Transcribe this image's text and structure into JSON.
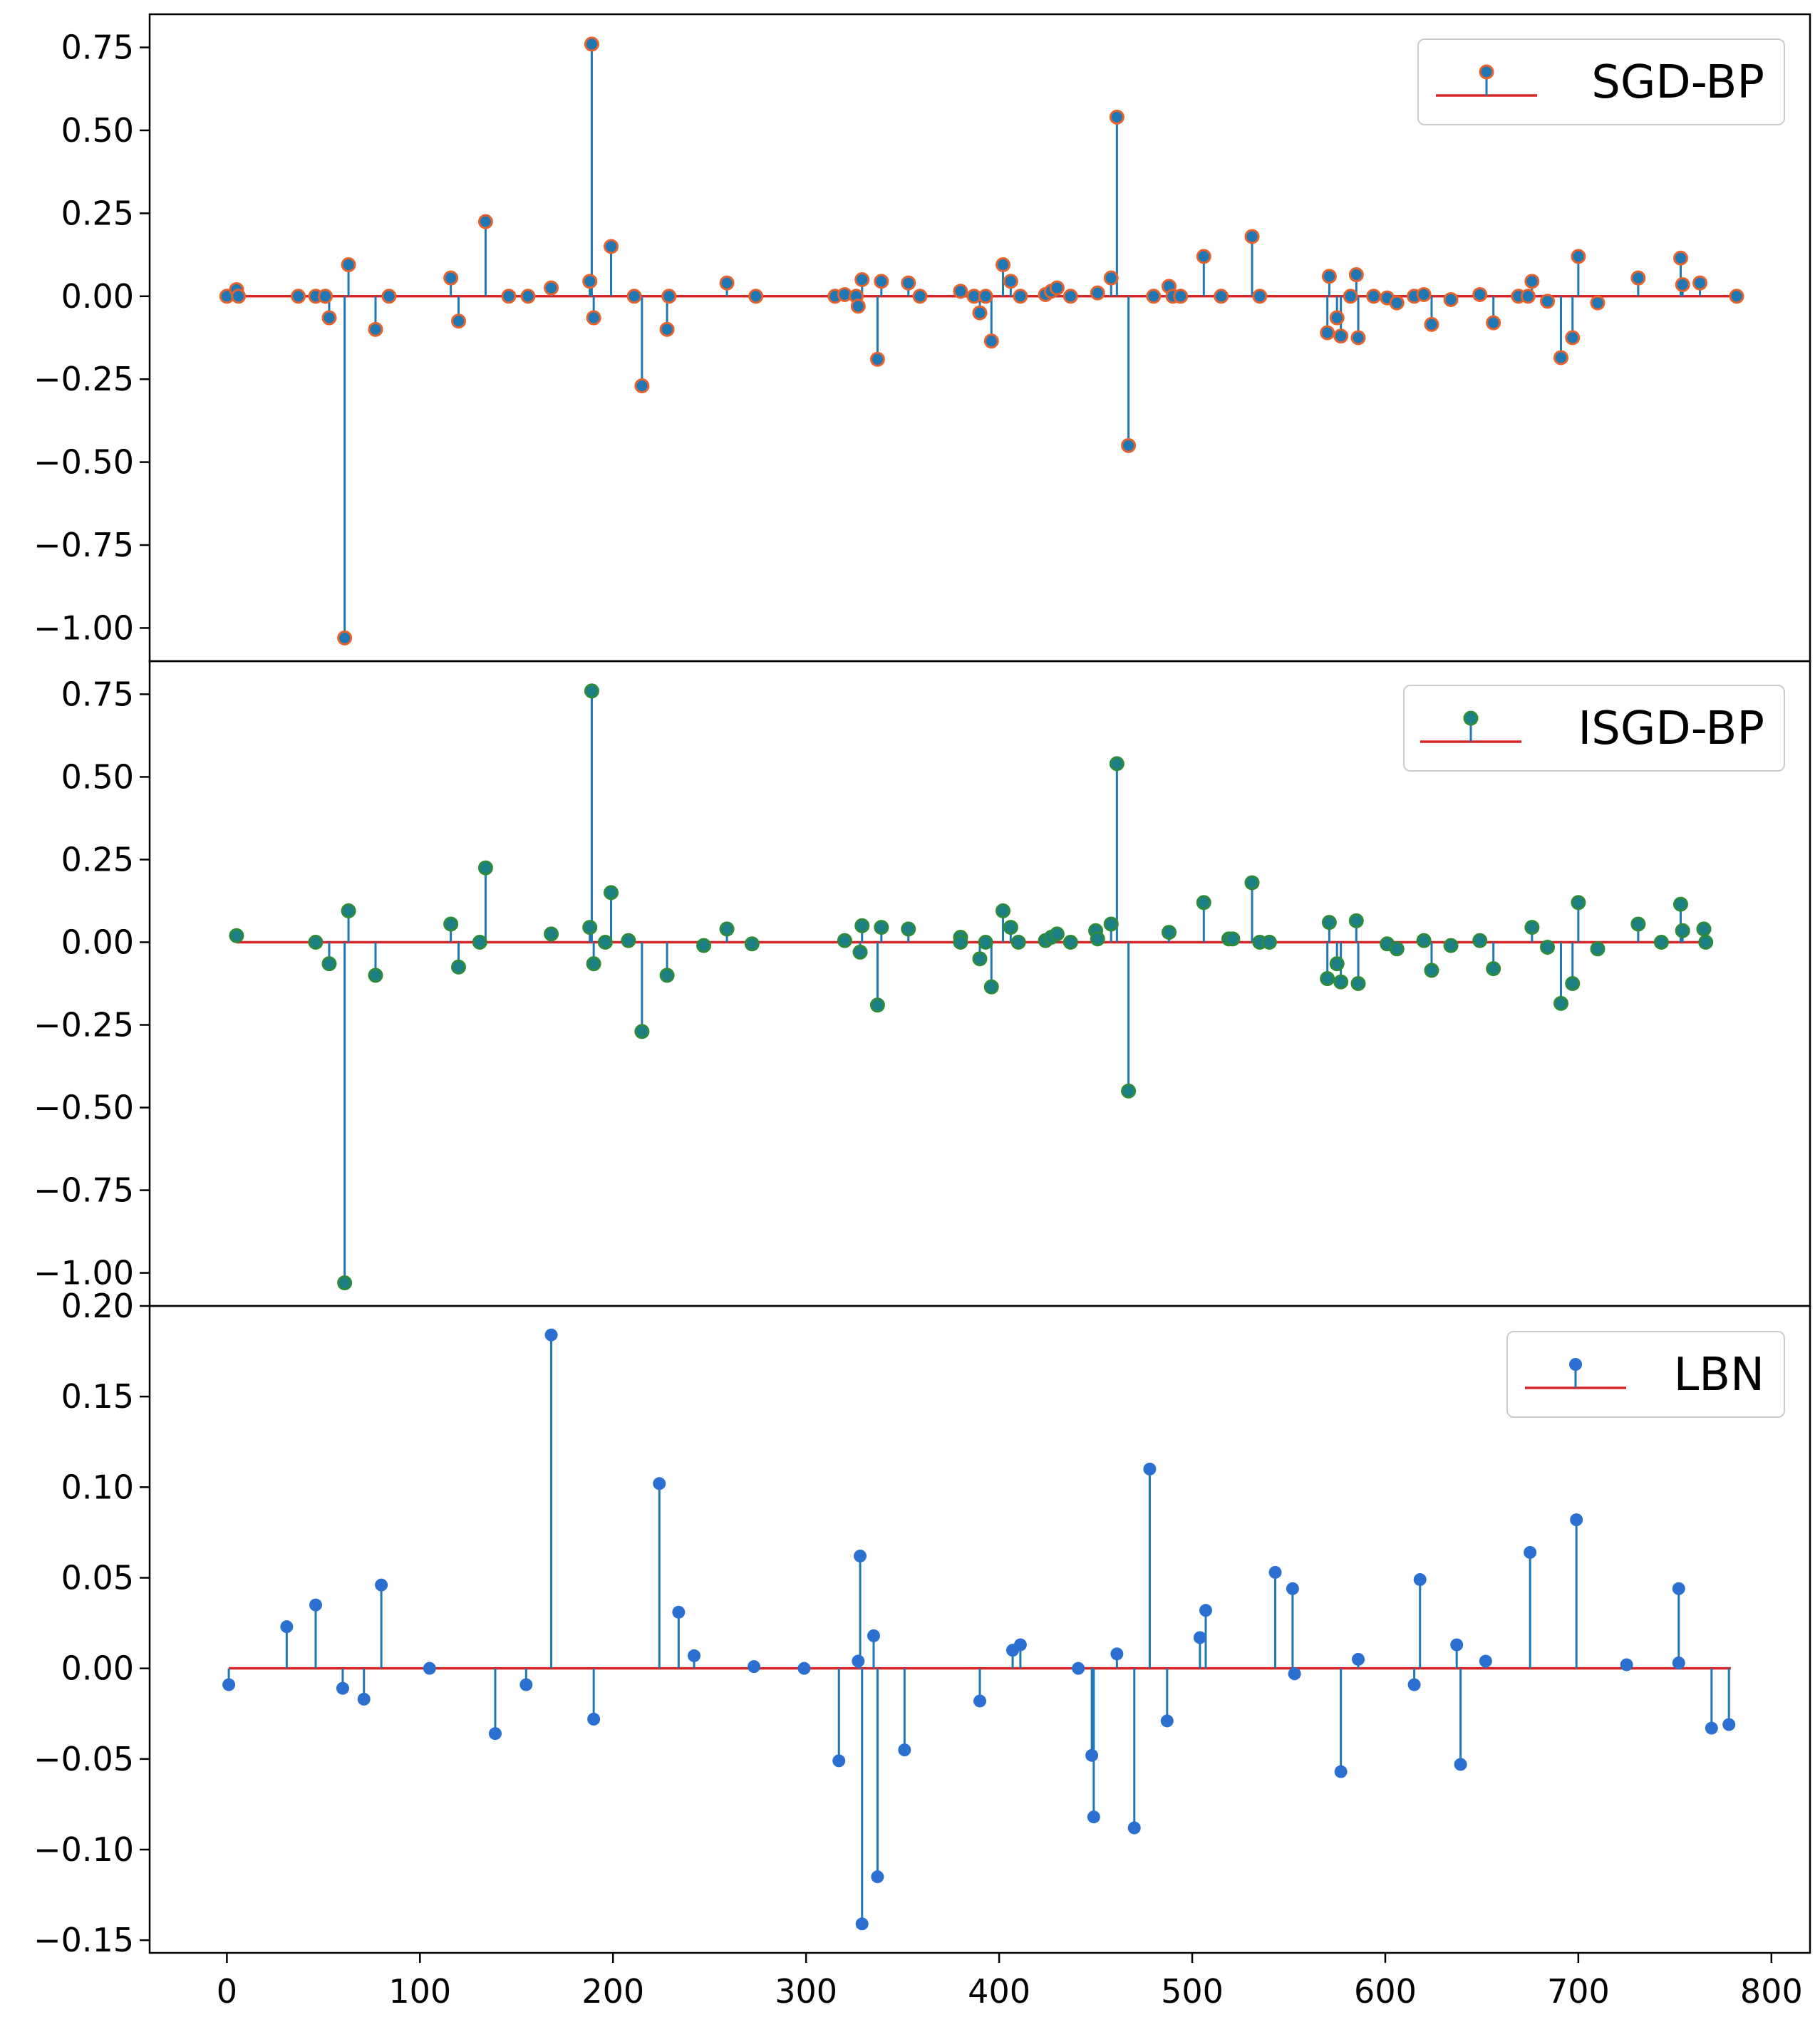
{
  "colors": {
    "stem": "#1f77b4",
    "baseline": "#d62728",
    "marker_lbn": "#2b6fd1",
    "marker_edge_sgd": "#e8622c",
    "marker_edge_isgd": "#2e8b3a"
  },
  "chart_data": [
    {
      "type": "stem",
      "legend": "SGD-BP",
      "legend_position": "top-right",
      "marker_style": "blue fill, orange edge",
      "xlim": [
        -40,
        820
      ],
      "ylim": [
        -1.1,
        0.85
      ],
      "yticks": [
        0.75,
        0.5,
        0.25,
        0.0,
        -0.25,
        -0.5,
        -0.75,
        -1.0
      ],
      "ytick_labels": [
        "0.75",
        "0.50",
        "0.25",
        "0.00",
        "−0.25",
        "−0.50",
        "−0.75",
        "−1.00"
      ],
      "baseline_range": [
        0,
        783
      ],
      "points": [
        [
          0,
          0.0
        ],
        [
          5,
          0.02
        ],
        [
          6,
          0.0
        ],
        [
          37,
          0.0
        ],
        [
          46,
          0.0
        ],
        [
          51,
          0.0
        ],
        [
          53,
          -0.065
        ],
        [
          61,
          -1.03
        ],
        [
          63,
          0.095
        ],
        [
          77,
          -0.1
        ],
        [
          84,
          0.0
        ],
        [
          116,
          0.055
        ],
        [
          120,
          -0.075
        ],
        [
          134,
          0.225
        ],
        [
          146,
          0.0
        ],
        [
          156,
          0.0
        ],
        [
          168,
          0.025
        ],
        [
          188,
          0.045
        ],
        [
          189,
          0.76
        ],
        [
          190,
          -0.065
        ],
        [
          199,
          0.15
        ],
        [
          211,
          0.0
        ],
        [
          215,
          -0.27
        ],
        [
          228,
          -0.1
        ],
        [
          229,
          0.0
        ],
        [
          259,
          0.04
        ],
        [
          274,
          0.0
        ],
        [
          315,
          0.0
        ],
        [
          320,
          0.005
        ],
        [
          326,
          0.0
        ],
        [
          327,
          -0.03
        ],
        [
          329,
          0.05
        ],
        [
          337,
          -0.19
        ],
        [
          339,
          0.045
        ],
        [
          353,
          0.04
        ],
        [
          359,
          0.0
        ],
        [
          380,
          0.015
        ],
        [
          387,
          0.0
        ],
        [
          390,
          -0.05
        ],
        [
          393,
          0.0
        ],
        [
          396,
          -0.135
        ],
        [
          402,
          0.095
        ],
        [
          406,
          0.045
        ],
        [
          411,
          0.0
        ],
        [
          424,
          0.005
        ],
        [
          427,
          0.015
        ],
        [
          430,
          0.025
        ],
        [
          437,
          0.0
        ],
        [
          451,
          0.01
        ],
        [
          458,
          0.055
        ],
        [
          461,
          0.54
        ],
        [
          467,
          -0.45
        ],
        [
          480,
          0.0
        ],
        [
          488,
          0.03
        ],
        [
          490,
          0.0
        ],
        [
          494,
          0.0
        ],
        [
          506,
          0.12
        ],
        [
          515,
          0.0
        ],
        [
          531,
          0.18
        ],
        [
          535,
          0.0
        ],
        [
          570,
          -0.11
        ],
        [
          571,
          0.06
        ],
        [
          575,
          -0.065
        ],
        [
          577,
          -0.12
        ],
        [
          582,
          0.0
        ],
        [
          585,
          0.065
        ],
        [
          586,
          -0.125
        ],
        [
          594,
          0.0
        ],
        [
          601,
          -0.005
        ],
        [
          606,
          -0.02
        ],
        [
          615,
          0.0
        ],
        [
          620,
          0.005
        ],
        [
          624,
          -0.085
        ],
        [
          634,
          -0.01
        ],
        [
          649,
          0.005
        ],
        [
          656,
          -0.08
        ],
        [
          669,
          0.0
        ],
        [
          674,
          0.0
        ],
        [
          676,
          0.045
        ],
        [
          684,
          -0.015
        ],
        [
          691,
          -0.185
        ],
        [
          697,
          -0.125
        ],
        [
          700,
          0.12
        ],
        [
          710,
          -0.02
        ],
        [
          731,
          0.055
        ],
        [
          753,
          0.115
        ],
        [
          754,
          0.035
        ],
        [
          763,
          0.04
        ],
        [
          782,
          0.0
        ]
      ]
    },
    {
      "type": "stem",
      "legend": "ISGD-BP",
      "legend_position": "top-right",
      "marker_style": "teal fill, green edge",
      "xlim": [
        -40,
        820
      ],
      "ylim": [
        -1.1,
        0.85
      ],
      "yticks": [
        0.75,
        0.5,
        0.25,
        0.0,
        -0.25,
        -0.5,
        -0.75,
        -1.0
      ],
      "ytick_labels": [
        "0.75",
        "0.50",
        "0.25",
        "0.00",
        "−0.25",
        "−0.50",
        "−0.75",
        "−1.00"
      ],
      "baseline_range": [
        5,
        766
      ],
      "points": [
        [
          5,
          0.02
        ],
        [
          46,
          0.0
        ],
        [
          53,
          -0.065
        ],
        [
          61,
          -1.03
        ],
        [
          63,
          0.095
        ],
        [
          77,
          -0.1
        ],
        [
          116,
          0.055
        ],
        [
          120,
          -0.075
        ],
        [
          131,
          0.0
        ],
        [
          134,
          0.225
        ],
        [
          168,
          0.025
        ],
        [
          188,
          0.045
        ],
        [
          189,
          0.76
        ],
        [
          190,
          -0.065
        ],
        [
          196,
          0.0
        ],
        [
          199,
          0.15
        ],
        [
          208,
          0.005
        ],
        [
          215,
          -0.27
        ],
        [
          228,
          -0.1
        ],
        [
          247,
          -0.01
        ],
        [
          259,
          0.04
        ],
        [
          272,
          -0.005
        ],
        [
          320,
          0.005
        ],
        [
          328,
          -0.03
        ],
        [
          329,
          0.05
        ],
        [
          337,
          -0.19
        ],
        [
          339,
          0.045
        ],
        [
          353,
          0.04
        ],
        [
          380,
          0.015
        ],
        [
          380,
          0.0
        ],
        [
          390,
          -0.05
        ],
        [
          393,
          0.0
        ],
        [
          396,
          -0.135
        ],
        [
          402,
          0.095
        ],
        [
          406,
          0.045
        ],
        [
          410,
          0.0
        ],
        [
          424,
          0.005
        ],
        [
          427,
          0.015
        ],
        [
          430,
          0.025
        ],
        [
          437,
          0.0
        ],
        [
          450,
          0.035
        ],
        [
          451,
          0.01
        ],
        [
          458,
          0.055
        ],
        [
          461,
          0.54
        ],
        [
          467,
          -0.45
        ],
        [
          488,
          0.03
        ],
        [
          506,
          0.12
        ],
        [
          519,
          0.01
        ],
        [
          521,
          0.01
        ],
        [
          531,
          0.18
        ],
        [
          535,
          0.0
        ],
        [
          540,
          0.0
        ],
        [
          570,
          -0.11
        ],
        [
          571,
          0.06
        ],
        [
          575,
          -0.065
        ],
        [
          577,
          -0.12
        ],
        [
          585,
          0.065
        ],
        [
          586,
          -0.125
        ],
        [
          601,
          -0.005
        ],
        [
          606,
          -0.02
        ],
        [
          620,
          0.005
        ],
        [
          624,
          -0.085
        ],
        [
          634,
          -0.01
        ],
        [
          649,
          0.005
        ],
        [
          656,
          -0.08
        ],
        [
          676,
          0.045
        ],
        [
          684,
          -0.015
        ],
        [
          691,
          -0.185
        ],
        [
          697,
          -0.125
        ],
        [
          700,
          0.12
        ],
        [
          710,
          -0.02
        ],
        [
          731,
          0.055
        ],
        [
          743,
          0.0
        ],
        [
          753,
          0.115
        ],
        [
          754,
          0.035
        ],
        [
          765,
          0.04
        ],
        [
          766,
          0.0
        ]
      ]
    },
    {
      "type": "stem",
      "legend": "LBN",
      "legend_position": "top-right",
      "marker_style": "blue fill",
      "xlim": [
        -40,
        820
      ],
      "ylim": [
        -0.157,
        0.2
      ],
      "yticks": [
        0.2,
        0.15,
        0.1,
        0.05,
        0.0,
        -0.05,
        -0.1,
        -0.15
      ],
      "ytick_labels": [
        "0.20",
        "0.15",
        "0.10",
        "0.05",
        "0.00",
        "−0.05",
        "−0.10",
        "−0.15"
      ],
      "xticks": [
        0,
        100,
        200,
        300,
        400,
        500,
        600,
        700,
        800
      ],
      "xtick_labels": [
        "0",
        "100",
        "200",
        "300",
        "400",
        "500",
        "600",
        "700",
        "800"
      ],
      "baseline_range": [
        1,
        779
      ],
      "points": [
        [
          1,
          -0.009
        ],
        [
          31,
          0.023
        ],
        [
          46,
          0.035
        ],
        [
          60,
          -0.011
        ],
        [
          71,
          -0.017
        ],
        [
          80,
          0.046
        ],
        [
          105,
          0.0
        ],
        [
          139,
          -0.036
        ],
        [
          155,
          -0.009
        ],
        [
          168,
          0.184
        ],
        [
          190,
          -0.028
        ],
        [
          224,
          0.102
        ],
        [
          234,
          0.031
        ],
        [
          242,
          0.007
        ],
        [
          273,
          0.001
        ],
        [
          299,
          0.0
        ],
        [
          317,
          -0.051
        ],
        [
          327,
          0.004
        ],
        [
          328,
          0.062
        ],
        [
          329,
          -0.141
        ],
        [
          335,
          0.018
        ],
        [
          337,
          -0.115
        ],
        [
          351,
          -0.045
        ],
        [
          390,
          -0.018
        ],
        [
          407,
          0.01
        ],
        [
          411,
          0.013
        ],
        [
          441,
          0.0
        ],
        [
          448,
          -0.048
        ],
        [
          449,
          -0.082
        ],
        [
          461,
          0.008
        ],
        [
          470,
          -0.088
        ],
        [
          478,
          0.11
        ],
        [
          487,
          -0.029
        ],
        [
          504,
          0.017
        ],
        [
          507,
          0.032
        ],
        [
          543,
          0.053
        ],
        [
          552,
          0.044
        ],
        [
          553,
          -0.003
        ],
        [
          577,
          -0.057
        ],
        [
          586,
          0.005
        ],
        [
          615,
          -0.009
        ],
        [
          618,
          0.049
        ],
        [
          637,
          0.013
        ],
        [
          639,
          -0.053
        ],
        [
          652,
          0.004
        ],
        [
          675,
          0.064
        ],
        [
          699,
          0.082
        ],
        [
          725,
          0.002
        ],
        [
          752,
          0.044
        ],
        [
          752,
          0.003
        ],
        [
          769,
          -0.033
        ],
        [
          778,
          -0.031
        ]
      ]
    }
  ]
}
